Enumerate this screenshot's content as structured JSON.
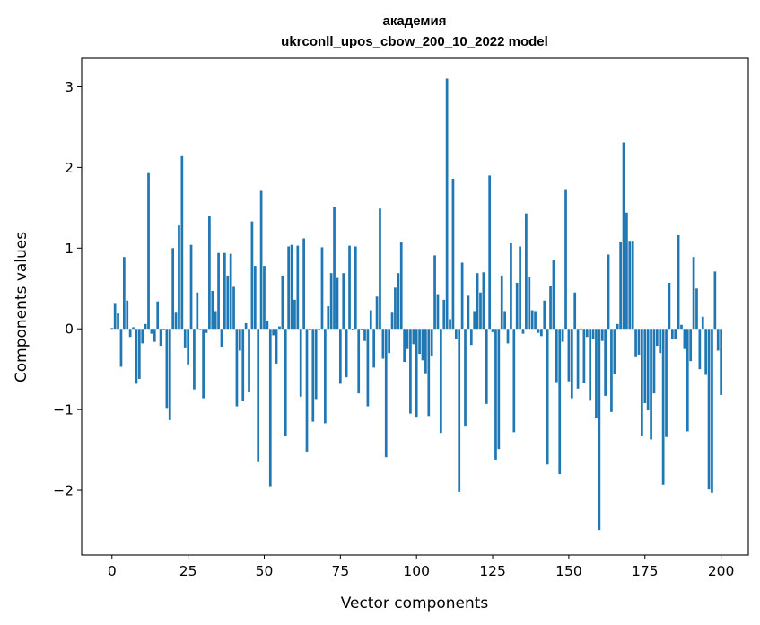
{
  "chart_data": {
    "type": "bar",
    "title": "академия",
    "subtitle": "ukrconll_upos_cbow_200_10_2022 model",
    "xlabel": "Vector components",
    "ylabel": "Components values",
    "xlim": [
      -9.95,
      208.95
    ],
    "ylim": [
      -2.8,
      3.35
    ],
    "xticks": [
      0,
      25,
      50,
      75,
      100,
      125,
      150,
      175,
      200
    ],
    "yticks": [
      -2,
      -1,
      0,
      1,
      2,
      3
    ],
    "ytick_labels": [
      "−2",
      "−1",
      "0",
      "1",
      "2",
      "3"
    ],
    "grid": false,
    "legend": "none",
    "bar_color": "#1f77b4",
    "values": [
      0.01,
      0.32,
      0.19,
      -0.47,
      0.89,
      0.35,
      -0.1,
      0.02,
      -0.68,
      -0.62,
      -0.18,
      0.06,
      1.93,
      -0.06,
      -0.16,
      0.34,
      -0.21,
      -0.01,
      -0.98,
      -1.13,
      1.0,
      0.2,
      1.28,
      2.14,
      -0.23,
      -0.44,
      1.04,
      -0.75,
      0.45,
      0.0,
      -0.86,
      -0.05,
      1.4,
      0.47,
      0.22,
      0.94,
      -0.22,
      0.94,
      0.66,
      0.93,
      0.52,
      -0.96,
      -0.27,
      -0.89,
      0.07,
      -0.78,
      1.33,
      0.78,
      -1.64,
      1.71,
      0.78,
      0.1,
      -1.95,
      -0.08,
      -0.43,
      0.03,
      0.66,
      -1.33,
      1.02,
      1.04,
      0.36,
      1.03,
      -0.84,
      1.12,
      -1.52,
      -0.01,
      -1.15,
      -0.87,
      0.0,
      1.01,
      -1.17,
      0.28,
      0.69,
      1.51,
      0.63,
      -0.68,
      0.69,
      -0.6,
      1.03,
      -0.01,
      1.02,
      -0.8,
      -0.02,
      -0.15,
      -0.96,
      0.23,
      -0.48,
      0.4,
      1.49,
      -0.37,
      -1.59,
      -0.3,
      0.2,
      0.51,
      0.69,
      1.07,
      -0.41,
      -0.25,
      -1.05,
      -0.19,
      -1.09,
      -0.31,
      -0.39,
      -0.55,
      -1.08,
      -0.33,
      0.91,
      0.43,
      -1.29,
      0.36,
      3.1,
      0.12,
      1.86,
      -0.13,
      -2.02,
      0.82,
      -1.2,
      0.41,
      -0.2,
      0.22,
      0.69,
      0.45,
      0.7,
      -0.93,
      1.9,
      -0.04,
      -1.62,
      -1.49,
      0.66,
      0.22,
      -0.18,
      1.06,
      -1.28,
      0.57,
      1.02,
      -0.06,
      1.43,
      0.64,
      0.23,
      0.22,
      -0.05,
      -0.09,
      0.35,
      -1.68,
      0.53,
      0.85,
      -0.66,
      -1.8,
      -0.16,
      1.72,
      -0.65,
      -0.86,
      0.45,
      -0.74,
      -0.01,
      -0.67,
      -0.1,
      -0.88,
      -0.12,
      -1.11,
      -2.49,
      -0.15,
      -0.83,
      0.92,
      -1.03,
      -0.56,
      0.06,
      1.08,
      2.31,
      1.44,
      1.09,
      1.09,
      -0.34,
      -0.32,
      -1.32,
      -0.92,
      -1.01,
      -1.37,
      -0.8,
      -0.21,
      -0.3,
      -1.93,
      -1.34,
      0.57,
      -0.13,
      -0.12,
      1.16,
      0.05,
      -0.25,
      -1.27,
      -0.4,
      0.89,
      0.5,
      -0.5,
      0.15,
      -0.57,
      -1.99,
      -2.03,
      0.71,
      -0.27,
      -0.82
    ]
  }
}
